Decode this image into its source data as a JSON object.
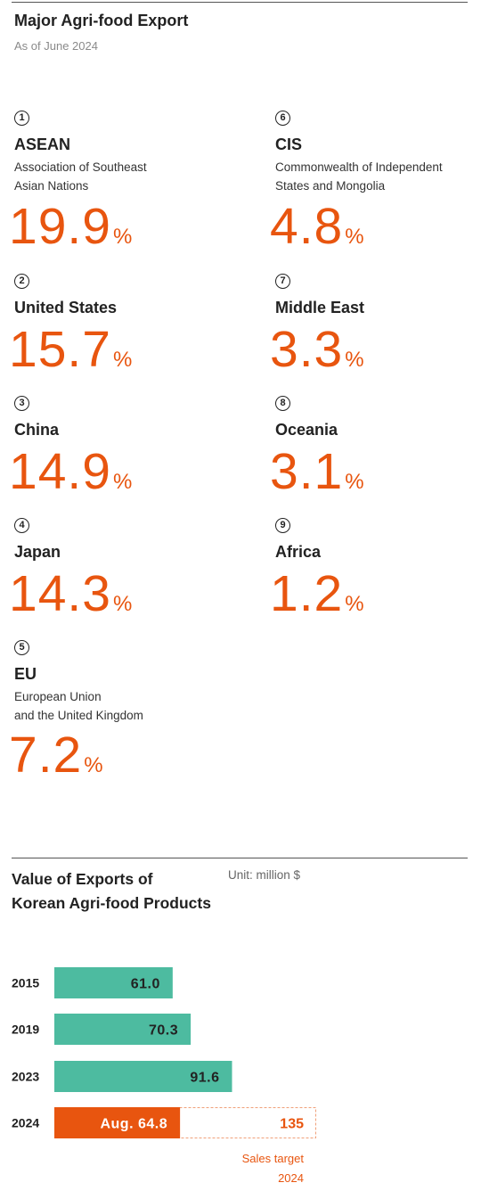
{
  "header": {
    "title": "Major Agri-food Export",
    "subtitle": "As of June 2024"
  },
  "entries": [
    {
      "rank": "1",
      "name": "ASEAN",
      "desc": [
        "Association of Southeast",
        "Asian Nations"
      ],
      "percent": "19.9",
      "sign": "%"
    },
    {
      "rank": "2",
      "name": "United States",
      "desc": [],
      "percent": "15.7",
      "sign": "%"
    },
    {
      "rank": "3",
      "name": "China",
      "desc": [],
      "percent": "14.9",
      "sign": "%"
    },
    {
      "rank": "4",
      "name": "Japan",
      "desc": [],
      "percent": "14.3",
      "sign": "%"
    },
    {
      "rank": "5",
      "name": "EU",
      "desc": [
        "European Union",
        "and the United Kingdom"
      ],
      "percent": "7.2",
      "sign": "%"
    },
    {
      "rank": "6",
      "name": "CIS",
      "desc": [
        "Commonwealth of Independent",
        "States and Mongolia"
      ],
      "percent": "4.8",
      "sign": "%"
    },
    {
      "rank": "7",
      "name": "Middle East",
      "desc": [],
      "percent": "3.3",
      "sign": "%"
    },
    {
      "rank": "8",
      "name": "Oceania",
      "desc": [],
      "percent": "3.1",
      "sign": "%"
    },
    {
      "rank": "9",
      "name": "Africa",
      "desc": [],
      "percent": "1.2",
      "sign": "%"
    }
  ],
  "chart_data": {
    "type": "bar",
    "orientation": "horizontal",
    "title": [
      "Value of Exports of",
      "Korean Agri-food Products"
    ],
    "unit": "Unit: million $",
    "categories": [
      "2015",
      "2019",
      "2023",
      "2024"
    ],
    "values": [
      61.0,
      70.3,
      91.6,
      64.8
    ],
    "value_labels": [
      "61.0",
      "70.3",
      "91.6",
      "Aug. 64.8"
    ],
    "target": {
      "category": "2024",
      "value": 135,
      "label": "135",
      "note": [
        "Sales target",
        "2024"
      ]
    },
    "colors": {
      "past": "#4dbba0",
      "current": "#e8550f",
      "target_border": "#f0a07a"
    }
  },
  "colors": {
    "accent": "#e8550f",
    "teal": "#4dbba0"
  }
}
